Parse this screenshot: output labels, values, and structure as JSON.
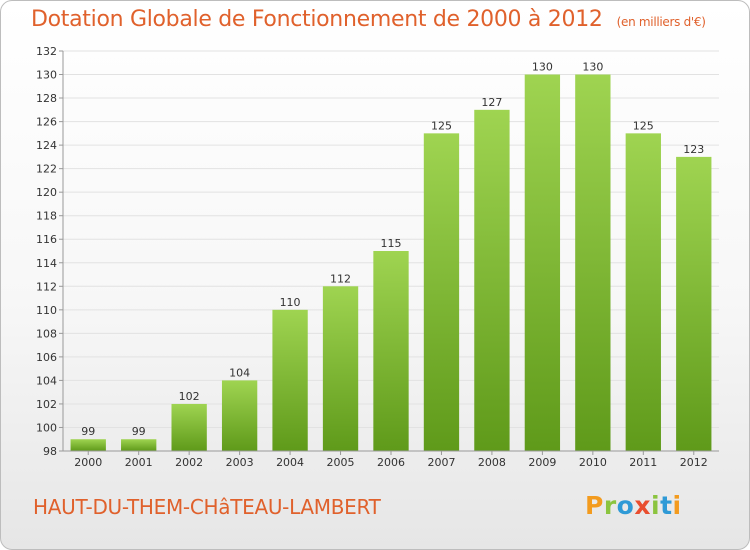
{
  "title": "Dotation Globale de Fonctionnement de 2000 à 2012",
  "units": "(en milliers d'€)",
  "commune": "HAUT-DU-THEM-CHâTEAU-LAMBERT",
  "brand": {
    "name": "Proxiti",
    "letters": [
      "P",
      "r",
      "o",
      "x",
      "i",
      "t",
      "i"
    ],
    "letter_colors": [
      "#f39b1e",
      "#8bc43f",
      "#2f9ad6",
      "#e94e2f",
      "#8bc43f",
      "#2f9ad6",
      "#f39b1e"
    ]
  },
  "chart_data": {
    "type": "bar",
    "categories": [
      "2000",
      "2001",
      "2002",
      "2003",
      "2004",
      "2005",
      "2006",
      "2007",
      "2008",
      "2009",
      "2010",
      "2011",
      "2012"
    ],
    "values": [
      99,
      99,
      102,
      104,
      110,
      112,
      115,
      125,
      127,
      130,
      130,
      125,
      123
    ],
    "ylim": [
      98,
      132
    ],
    "yticks": [
      98,
      100,
      102,
      104,
      106,
      108,
      110,
      112,
      114,
      116,
      118,
      120,
      122,
      124,
      126,
      128,
      130,
      132
    ],
    "grid": true,
    "colors": {
      "bar_top": "#9fd451",
      "bar_bottom": "#5f9a1a"
    }
  }
}
